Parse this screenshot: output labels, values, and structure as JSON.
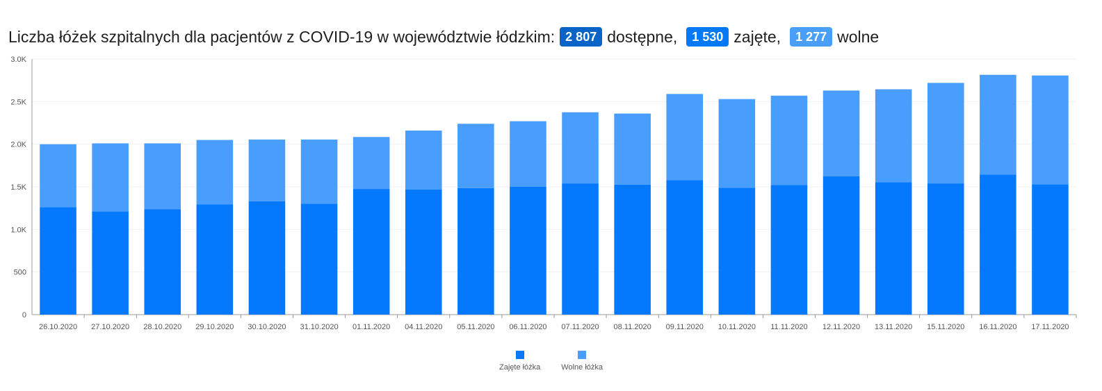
{
  "title": {
    "prefix": "Liczba łóżek szpitalnych dla pacjentów z COVID-19 w województwie łódzkim:",
    "available_value": "2 807",
    "available_label": "dostępne,",
    "occupied_value": "1 530",
    "occupied_label": "zajęte,",
    "free_value": "1 277",
    "free_label": "wolne"
  },
  "colors": {
    "badge_available": "#0a64c8",
    "badge_occupied": "#0479f5",
    "badge_free": "#499ef7",
    "series_occupied": "#0479fd",
    "series_free": "#489dfd"
  },
  "chart_data": {
    "type": "bar",
    "stacked": true,
    "categories": [
      "26.10.2020",
      "27.10.2020",
      "28.10.2020",
      "29.10.2020",
      "30.10.2020",
      "31.10.2020",
      "01.11.2020",
      "04.11.2020",
      "05.11.2020",
      "06.11.2020",
      "07.11.2020",
      "08.11.2020",
      "09.11.2020",
      "10.11.2020",
      "11.11.2020",
      "12.11.2020",
      "13.11.2020",
      "15.11.2020",
      "16.11.2020",
      "17.11.2020"
    ],
    "series": [
      {
        "name": "Zajęte łóżka",
        "color": "#0479fd",
        "values": [
          1260,
          1210,
          1235,
          1295,
          1330,
          1300,
          1475,
          1470,
          1485,
          1500,
          1540,
          1525,
          1580,
          1490,
          1520,
          1625,
          1555,
          1540,
          1645,
          1530
        ]
      },
      {
        "name": "Wolne łóżka",
        "color": "#489dfd",
        "values": [
          740,
          800,
          775,
          755,
          725,
          755,
          610,
          690,
          755,
          770,
          835,
          835,
          1010,
          1040,
          1050,
          1005,
          1090,
          1180,
          1170,
          1277
        ]
      }
    ],
    "ylim": [
      0,
      3000
    ],
    "yticks": [
      0,
      500,
      1000,
      1500,
      2000,
      2500,
      3000
    ],
    "ytick_labels": [
      "0",
      "500",
      "1.0K",
      "1.5K",
      "2.0K",
      "2.5K",
      "3.0K"
    ],
    "grid": true,
    "legend_position": "bottom-center"
  }
}
